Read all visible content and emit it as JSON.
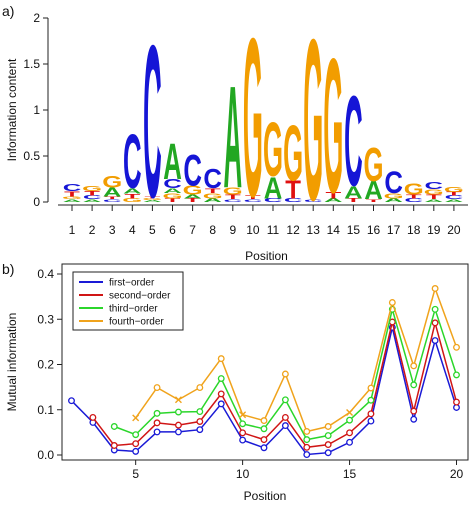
{
  "panels": {
    "a": {
      "label": "a)"
    },
    "b": {
      "label": "b)"
    }
  },
  "chart_data": [
    {
      "type": "sequence-logo",
      "xlabel": "Position",
      "ylabel": "Information content",
      "ylim": [
        0,
        2
      ],
      "yticks": [
        "0",
        "0.5",
        "1",
        "1.5",
        "2"
      ],
      "xticks": [
        "1",
        "2",
        "3",
        "4",
        "5",
        "6",
        "7",
        "8",
        "9",
        "10",
        "11",
        "12",
        "13",
        "14",
        "15",
        "16",
        "17",
        "18",
        "19",
        "20"
      ],
      "letter_colors": {
        "A": "#22a722",
        "C": "#1515d6",
        "G": "#f29d00",
        "T": "#e01010"
      },
      "positions": [
        [
          [
            "A",
            0.03
          ],
          [
            "G",
            0.03
          ],
          [
            "T",
            0.06
          ],
          [
            "C",
            0.08
          ]
        ],
        [
          [
            "A",
            0.03
          ],
          [
            "C",
            0.04
          ],
          [
            "T",
            0.05
          ],
          [
            "G",
            0.06
          ]
        ],
        [
          [
            "C",
            0.03
          ],
          [
            "T",
            0.03
          ],
          [
            "A",
            0.1
          ],
          [
            "G",
            0.13
          ]
        ],
        [
          [
            "G",
            0.04
          ],
          [
            "T",
            0.05
          ],
          [
            "A",
            0.06
          ],
          [
            "C",
            0.6
          ]
        ],
        [
          [
            "A",
            0.02
          ],
          [
            "G",
            0.02
          ],
          [
            "T",
            0.02
          ],
          [
            "C",
            1.7
          ]
        ],
        [
          [
            "T",
            0.04
          ],
          [
            "G",
            0.06
          ],
          [
            "A",
            0.05
          ],
          [
            "C",
            0.1
          ],
          [
            "A",
            0.4
          ]
        ],
        [
          [
            "T",
            0.04
          ],
          [
            "A",
            0.04
          ],
          [
            "G",
            0.1
          ],
          [
            "C",
            0.35
          ]
        ],
        [
          [
            "A",
            0.04
          ],
          [
            "G",
            0.06
          ],
          [
            "T",
            0.05
          ],
          [
            "C",
            0.22
          ]
        ],
        [
          [
            "C",
            0.03
          ],
          [
            "T",
            0.05
          ],
          [
            "G",
            0.08
          ],
          [
            "A",
            1.14
          ]
        ],
        [
          [
            "C",
            0.03
          ],
          [
            "T",
            0.04
          ],
          [
            "G",
            1.77
          ]
        ],
        [
          [
            "C",
            0.04
          ],
          [
            "A",
            0.24
          ],
          [
            "G",
            0.6
          ]
        ],
        [
          [
            "C",
            0.04
          ],
          [
            "T",
            0.2
          ],
          [
            "G",
            0.62
          ]
        ],
        [
          [
            "C",
            0.03
          ],
          [
            "G",
            1.8
          ]
        ],
        [
          [
            "A",
            0.04
          ],
          [
            "T",
            0.07
          ],
          [
            "G",
            1.5
          ]
        ],
        [
          [
            "T",
            0.04
          ],
          [
            "A",
            0.14
          ],
          [
            "C",
            1.0
          ]
        ],
        [
          [
            "T",
            0.03
          ],
          [
            "A",
            0.2
          ],
          [
            "G",
            0.38
          ]
        ],
        [
          [
            "A",
            0.04
          ],
          [
            "G",
            0.06
          ],
          [
            "C",
            0.25
          ]
        ],
        [
          [
            "C",
            0.04
          ],
          [
            "T",
            0.04
          ],
          [
            "G",
            0.12
          ]
        ],
        [
          [
            "A",
            0.03
          ],
          [
            "T",
            0.05
          ],
          [
            "G",
            0.06
          ],
          [
            "C",
            0.08
          ]
        ],
        [
          [
            "A",
            0.03
          ],
          [
            "C",
            0.04
          ],
          [
            "T",
            0.04
          ],
          [
            "G",
            0.06
          ]
        ]
      ]
    },
    {
      "type": "line",
      "xlabel": "Position",
      "ylabel": "Mutual information",
      "xlim": [
        2,
        20
      ],
      "ylim": [
        0,
        0.4
      ],
      "xticks": [
        "5",
        "10",
        "15",
        "20"
      ],
      "yticks": [
        "0.0",
        "0.1",
        "0.2",
        "0.3",
        "0.4"
      ],
      "legend_position": "top-left",
      "series": [
        {
          "name": "first−order",
          "color": "#1a1ad6",
          "x": [
            2,
            3,
            4,
            5,
            6,
            7,
            8,
            9,
            10,
            11,
            12,
            13,
            14,
            15,
            16,
            17,
            18,
            19,
            20
          ],
          "y": [
            0.12,
            0.072,
            0.011,
            0.008,
            0.051,
            0.051,
            0.056,
            0.113,
            0.033,
            0.016,
            0.065,
            0.001,
            0.005,
            0.028,
            0.075,
            0.282,
            0.079,
            0.253,
            0.105
          ],
          "markers": [
            "o",
            "o",
            "o",
            "o",
            "o",
            "o",
            "o",
            "o",
            "o",
            "o",
            "o",
            "o",
            "o",
            "o",
            "o",
            "o",
            "o",
            "o",
            "o"
          ]
        },
        {
          "name": "second−order",
          "color": "#d01515",
          "x": [
            3,
            4,
            5,
            6,
            7,
            8,
            9,
            10,
            11,
            12,
            13,
            14,
            15,
            16,
            17,
            18,
            19,
            20
          ],
          "y": [
            0.083,
            0.021,
            0.025,
            0.071,
            0.066,
            0.074,
            0.135,
            0.049,
            0.034,
            0.083,
            0.017,
            0.023,
            0.049,
            0.091,
            0.294,
            0.097,
            0.292,
            0.117
          ],
          "markers": [
            "o",
            "o",
            "o",
            "o",
            "o",
            "o",
            "o",
            "o",
            "o",
            "o",
            "o",
            "o",
            "o",
            "o",
            "o",
            "o",
            "o",
            "o"
          ]
        },
        {
          "name": "third−order",
          "color": "#2bd62b",
          "x": [
            4,
            5,
            6,
            7,
            8,
            9,
            10,
            11,
            12,
            13,
            14,
            15,
            16,
            17,
            18,
            19,
            20
          ],
          "y": [
            0.063,
            0.045,
            0.092,
            0.095,
            0.096,
            0.169,
            0.069,
            0.058,
            0.122,
            0.034,
            0.043,
            0.077,
            0.121,
            0.322,
            0.155,
            0.322,
            0.177
          ],
          "markers": [
            "o",
            "o",
            "o",
            "o",
            "o",
            "o",
            "o",
            "o",
            "o",
            "o",
            "o",
            "o",
            "o",
            "o",
            "o",
            "o",
            "o"
          ]
        },
        {
          "name": "fourth−order",
          "color": "#f0a31c",
          "x": [
            5,
            6,
            7,
            8,
            9,
            10,
            11,
            12,
            13,
            14,
            15,
            16,
            17,
            18,
            19,
            20
          ],
          "y": [
            0.082,
            0.149,
            0.122,
            0.149,
            0.213,
            0.089,
            0.076,
            0.179,
            0.052,
            0.063,
            0.094,
            0.148,
            0.337,
            0.197,
            0.368,
            0.238
          ],
          "markers": [
            "x",
            "o",
            "x",
            "o",
            "o",
            "x",
            "o",
            "o",
            "o",
            "o",
            "x",
            "o",
            "o",
            "o",
            "o",
            "o"
          ]
        }
      ]
    }
  ]
}
